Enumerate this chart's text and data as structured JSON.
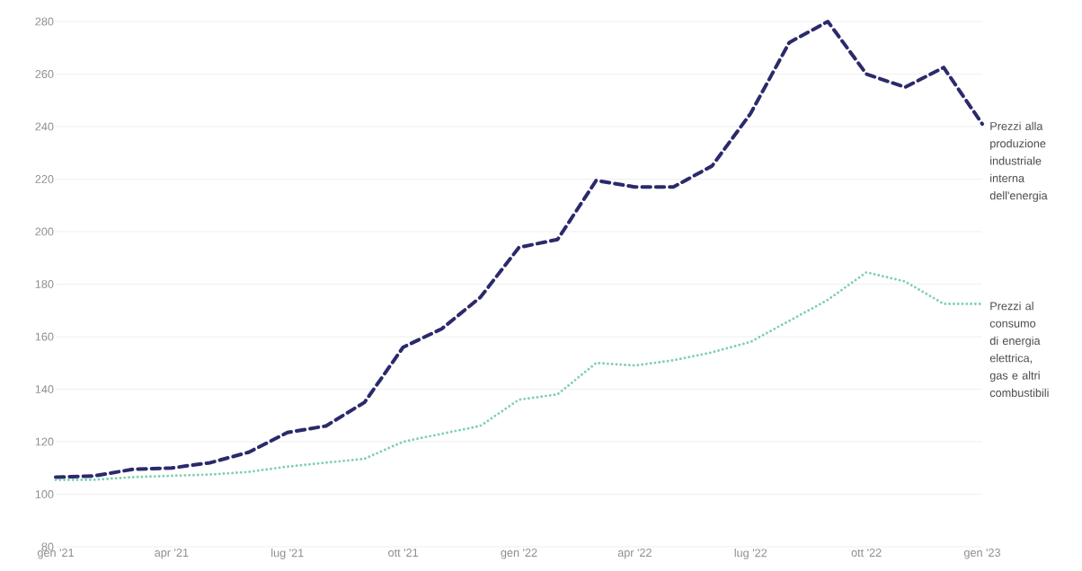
{
  "chart_data": {
    "type": "line",
    "x": [
      "2021-01",
      "2021-02",
      "2021-03",
      "2021-04",
      "2021-05",
      "2021-06",
      "2021-07",
      "2021-08",
      "2021-09",
      "2021-10",
      "2021-11",
      "2021-12",
      "2022-01",
      "2022-02",
      "2022-03",
      "2022-04",
      "2022-05",
      "2022-06",
      "2022-07",
      "2022-08",
      "2022-09",
      "2022-10",
      "2022-11",
      "2022-12",
      "2023-01"
    ],
    "series": [
      {
        "name": "Prezzi alla produzione industriale interna dell'energia",
        "color": "#2b2a6b",
        "line_style": "dashed",
        "values": [
          106.5,
          107,
          109.5,
          110,
          112,
          116,
          123.5,
          126,
          135,
          156,
          163,
          175,
          194,
          197,
          219.5,
          217,
          217,
          225,
          245,
          272,
          280,
          260,
          255,
          262.5,
          241
        ]
      },
      {
        "name": "Prezzi al consumo di energia elettrica, gas e altri combustibili",
        "color": "#7fcfb5",
        "line_style": "dotted",
        "values": [
          105.5,
          105.5,
          106.5,
          107,
          107.5,
          108.5,
          110.5,
          112,
          113.5,
          120,
          123,
          126,
          136,
          138,
          150,
          149,
          151,
          154,
          158,
          166,
          174,
          184.5,
          181,
          172.5,
          172.5
        ]
      }
    ],
    "xlim": [
      "2021-01",
      "2023-01"
    ],
    "xticks": [
      {
        "value": "2021-01",
        "label": "gen '21"
      },
      {
        "value": "2021-04",
        "label": "apr '21"
      },
      {
        "value": "2021-07",
        "label": "lug '21"
      },
      {
        "value": "2021-10",
        "label": "ott '21"
      },
      {
        "value": "2022-01",
        "label": "gen '22"
      },
      {
        "value": "2022-04",
        "label": "apr '22"
      },
      {
        "value": "2022-07",
        "label": "lug '22"
      },
      {
        "value": "2022-10",
        "label": "ott '22"
      },
      {
        "value": "2023-01",
        "label": "gen '23"
      }
    ],
    "ylim": [
      80,
      280
    ],
    "yticks": [
      80,
      100,
      120,
      140,
      160,
      180,
      200,
      220,
      240,
      260,
      280
    ],
    "grid": "y",
    "legend": false
  }
}
